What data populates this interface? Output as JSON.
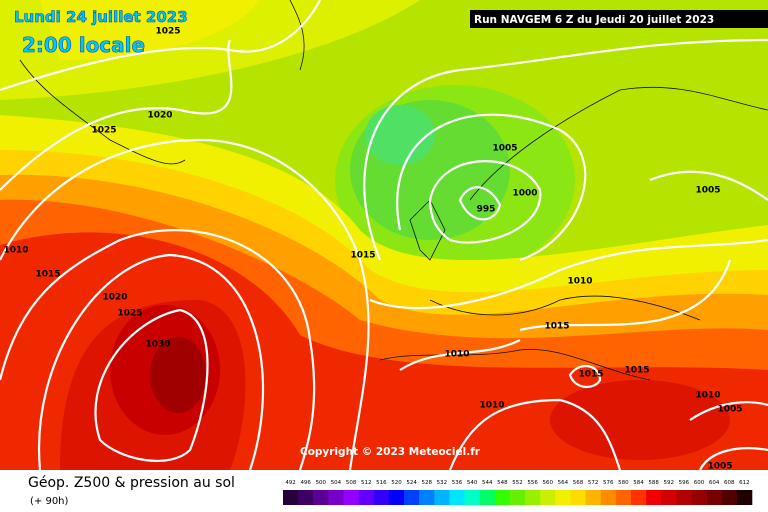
{
  "header": {
    "date": "Lundi 24 juillet 2023",
    "time": "2:00 locale",
    "run": "Run NAVGEM 6 Z du Jeudi 20 juillet 2023"
  },
  "isobar_labels": [
    "1025",
    "1020",
    "1025",
    "1005",
    "1000",
    "995",
    "1005",
    "1010",
    "1015",
    "1015",
    "1020",
    "1025",
    "1030",
    "1010",
    "1015",
    "1010",
    "1015",
    "1015",
    "1010",
    "1010",
    "1005",
    "1005"
  ],
  "copyright": "Copyright © 2023 Meteociel.fr",
  "footer": {
    "title": "Géop. Z500 & pression au sol",
    "subtitle": "(+ 90h)"
  },
  "colorbar": {
    "labels": [
      492,
      496,
      500,
      504,
      508,
      512,
      516,
      520,
      524,
      528,
      532,
      536,
      540,
      544,
      548,
      552,
      556,
      560,
      564,
      568,
      572,
      576,
      580,
      584,
      588,
      592,
      596,
      600,
      604,
      608,
      612
    ]
  }
}
